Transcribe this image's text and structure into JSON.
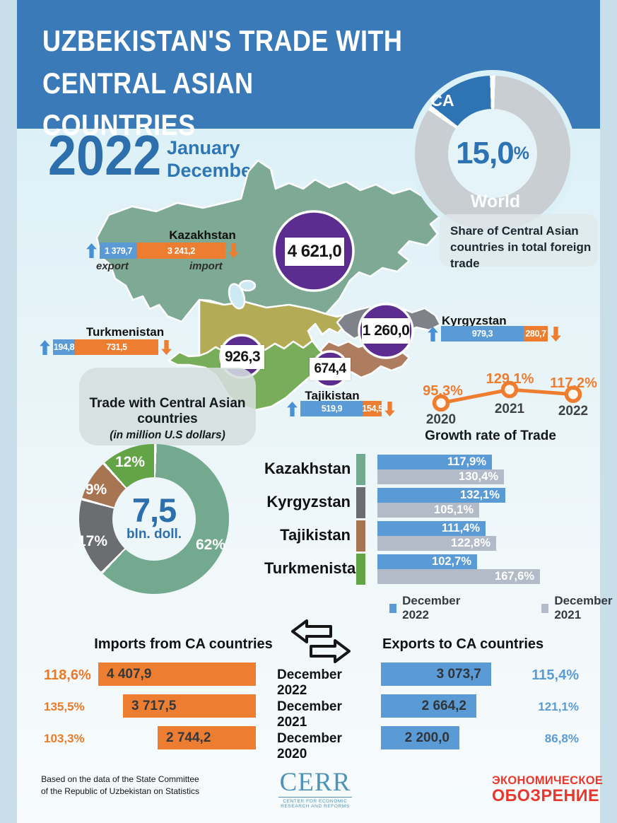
{
  "header": {
    "title_line1": "UZBEKISTAN'S TRADE WITH CENTRAL ASIAN",
    "title_line2": "COUNTRIES"
  },
  "period": {
    "year": "2022",
    "month_from": "January",
    "month_to": "December"
  },
  "share_donut": {
    "ca_label": "CA",
    "world_label": "World",
    "value_display": "15,0",
    "unit": "%",
    "caption_line1": "Share of Central Asian",
    "caption_line2": "countries in total foreign trade"
  },
  "map": {
    "export_label": "export",
    "import_label": "import",
    "colors": {
      "kazakhstan": "#7da995",
      "uzbekistan": "#b3ab55",
      "turkmenistan": "#78ad5a",
      "kyrgyzstan": "#7f8289",
      "tajikistan": "#ae7c5e",
      "water": "#cdeaf2",
      "bubble": "#5c2d90"
    },
    "countries": [
      {
        "name": "Kazakhstan",
        "total_display": "4 621,0",
        "export_display": "1 379,7",
        "import_display": "3 241,2",
        "export": 1379.7,
        "import": 3241.2
      },
      {
        "name": "Kyrgyzstan",
        "total_display": "1 260,0",
        "export_display": "979,3",
        "import_display": "280,7",
        "export": 979.3,
        "import": 280.7
      },
      {
        "name": "Turkmenistan",
        "total_display": "926,3",
        "export_display": "194,8",
        "import_display": "731,5",
        "export": 194.8,
        "import": 731.5
      },
      {
        "name": "Tajikistan",
        "total_display": "674,4",
        "export_display": "519,9",
        "import_display": "154,5",
        "export": 519.9,
        "import": 154.5
      }
    ]
  },
  "trade_box": {
    "line1": "Trade with Central Asian countries",
    "line2": "(in million U.S dollars)"
  },
  "growth_line": {
    "title": "Growth rate of Trade",
    "years": [
      "2020",
      "2021",
      "2022"
    ],
    "values": [
      95.3,
      129.1,
      117.2
    ],
    "labels": [
      "95,3%",
      "129,1%",
      "117,2%"
    ]
  },
  "structure_donut": {
    "center_value": "7,5",
    "center_unit": "bln. doll.",
    "slices": [
      {
        "label": "62%",
        "value": 62,
        "color": "#73a98f",
        "country": "Kazakhstan"
      },
      {
        "label": "17%",
        "value": 17,
        "color": "#6b6d71",
        "country": "Kyrgyzstan"
      },
      {
        "label": "9%",
        "value": 9,
        "color": "#a87553",
        "country": "Tajikistan"
      },
      {
        "label": "12%",
        "value": 12,
        "color": "#63a447",
        "country": "Turkmenistan"
      }
    ]
  },
  "growth_bars": {
    "legend": [
      {
        "label": "December 2022",
        "color": "#5b9bd5"
      },
      {
        "label": "December 2021",
        "color": "#b2bbc7"
      }
    ],
    "rows": [
      {
        "country": "Kazakhstan",
        "swatch": "#73a98f",
        "v2022": 117.9,
        "d2022": "117,9%",
        "v2021": 130.4,
        "d2021": "130,4%"
      },
      {
        "country": "Kyrgyzstan",
        "swatch": "#6b6d71",
        "v2022": 132.1,
        "d2022": "132,1%",
        "v2021": 105.1,
        "d2021": "105,1%"
      },
      {
        "country": "Tajikistan",
        "swatch": "#a87553",
        "v2022": 111.4,
        "d2022": "111,4%",
        "v2021": 122.8,
        "d2021": "122,8%"
      },
      {
        "country": "Turkmenistan",
        "swatch": "#63a447",
        "v2022": 102.7,
        "d2022": "102,7%",
        "v2021": 167.6,
        "d2021": "167,6%"
      }
    ]
  },
  "flows": {
    "imports_title": "Imports from CA countries",
    "exports_title": "Exports to CA countries",
    "rows": [
      {
        "period": "December 2022",
        "import": 4407.9,
        "import_display": "4 407,9",
        "import_pct": "118,6%",
        "export": 3073.7,
        "export_display": "3 073,7",
        "export_pct": "115,4%"
      },
      {
        "period": "December 2021",
        "import": 3717.5,
        "import_display": "3 717,5",
        "import_pct": "135,5%",
        "export": 2664.2,
        "export_display": "2 664,2",
        "export_pct": "121,1%"
      },
      {
        "period": "December 2020",
        "import": 2744.2,
        "import_display": "2 744,2",
        "import_pct": "103,3%",
        "export": 2200.0,
        "export_display": "2 200,0",
        "export_pct": "86,8%"
      }
    ]
  },
  "footer": {
    "source_line1": "Based on the data of the State Committee",
    "source_line2": "of the Republic of Uzbekistan on Statistics",
    "cerr": "CERR",
    "cerr_sub1": "CENTER FOR ECONOMIC",
    "cerr_sub2": "RESEARCH AND REFORMS",
    "magazine_line1": "ЭКОНОМИЧЕСКОЕ",
    "magazine_line2": "ОБОЗРЕНИЕ"
  },
  "colors": {
    "header_blue": "#3b7ab8",
    "accent_blue": "#5b9bd5",
    "accent_orange": "#ed7d31",
    "ca_blue": "#2e74b5",
    "world_gray": "#c9ced3",
    "bar_gray": "#b2bbc7",
    "bubble_purple": "#5c2d90",
    "line_orange": "#ee7d2f",
    "logo_red": "#e8382d",
    "cerr_blue": "#4e94ba"
  },
  "chart_data": [
    {
      "type": "pie",
      "title": "Share of Central Asian countries in total foreign trade",
      "labels": [
        "CA",
        "World"
      ],
      "values": [
        15.0,
        85.0
      ],
      "unit": "%",
      "center_label": "15,0%"
    },
    {
      "type": "table",
      "title": "Trade with Central Asian countries (in million U.S dollars), 2022 January–December",
      "categories": [
        "Kazakhstan",
        "Kyrgyzstan",
        "Turkmenistan",
        "Tajikistan"
      ],
      "series": [
        {
          "name": "total",
          "values": [
            4621.0,
            1260.0,
            926.3,
            674.4
          ]
        },
        {
          "name": "export",
          "values": [
            1379.7,
            979.3,
            194.8,
            519.9
          ]
        },
        {
          "name": "import",
          "values": [
            3241.2,
            280.7,
            731.5,
            154.5
          ]
        }
      ]
    },
    {
      "type": "line",
      "title": "Growth rate of Trade",
      "x": [
        "2020",
        "2021",
        "2022"
      ],
      "values": [
        95.3,
        129.1,
        117.2
      ],
      "unit": "%",
      "legend_position": "none",
      "grid": false
    },
    {
      "type": "pie",
      "title": "Trade with Central Asian countries, structure (7,5 bln. doll.)",
      "labels": [
        "Kazakhstan",
        "Kyrgyzstan",
        "Tajikistan",
        "Turkmenistan"
      ],
      "values": [
        62,
        17,
        9,
        12
      ],
      "unit": "%",
      "center_label": "7,5 bln. doll."
    },
    {
      "type": "bar",
      "title": "Growth rate of trade by country",
      "categories": [
        "Kazakhstan",
        "Kyrgyzstan",
        "Tajikistan",
        "Turkmenistan"
      ],
      "series": [
        {
          "name": "December 2022",
          "values": [
            117.9,
            132.1,
            111.4,
            102.7
          ]
        },
        {
          "name": "December 2021",
          "values": [
            130.4,
            105.1,
            122.8,
            167.6
          ]
        }
      ],
      "unit": "%",
      "legend_position": "bottom"
    },
    {
      "type": "bar",
      "title": "Imports from CA countries",
      "categories": [
        "December 2022",
        "December 2021",
        "December 2020"
      ],
      "values": [
        4407.9,
        3717.5,
        2744.2
      ],
      "growth_pct": [
        118.6,
        135.5,
        103.3
      ]
    },
    {
      "type": "bar",
      "title": "Exports to CA countries",
      "categories": [
        "December 2022",
        "December 2021",
        "December 2020"
      ],
      "values": [
        3073.7,
        2664.2,
        2200.0
      ],
      "growth_pct": [
        115.4,
        121.1,
        86.8
      ]
    }
  ]
}
